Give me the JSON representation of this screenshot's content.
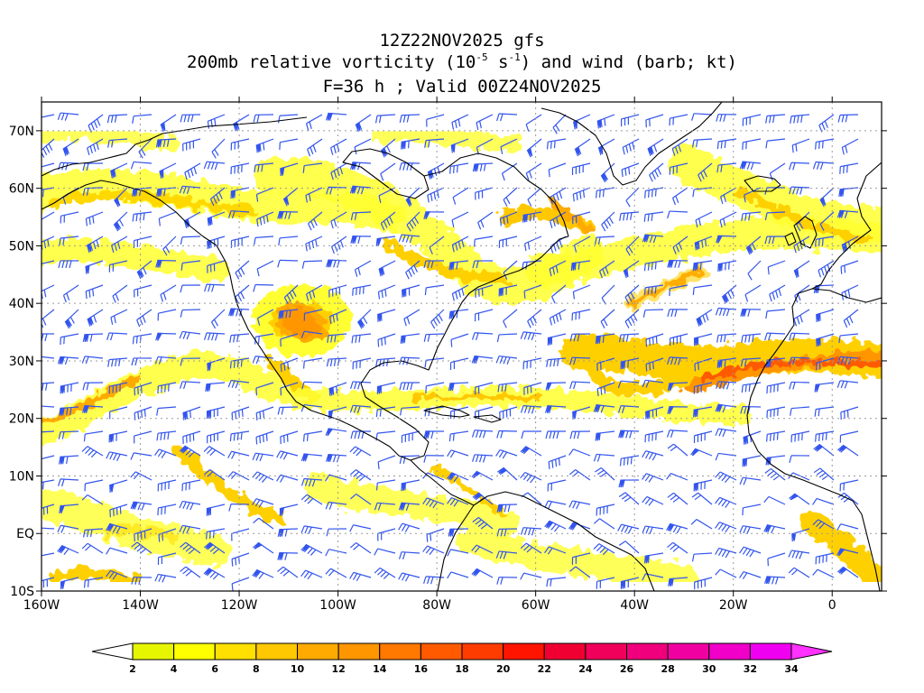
{
  "title": {
    "line1": "12Z22NOV2025 gfs",
    "line2_prefix": "200mb relative vorticity (10",
    "line2_exp1": "-5",
    "line2_mid": " s",
    "line2_exp2": "-1",
    "line2_suffix": ") and wind (barb; kt)",
    "line3": "F=36 h ; Valid 00Z24NOV2025"
  },
  "map": {
    "lon_range": [
      -160,
      10
    ],
    "lat_range": [
      -10,
      75
    ],
    "lon_ticks": [
      {
        "value": -160,
        "label": "160W"
      },
      {
        "value": -140,
        "label": "140W"
      },
      {
        "value": -120,
        "label": "120W"
      },
      {
        "value": -100,
        "label": "100W"
      },
      {
        "value": -80,
        "label": "80W"
      },
      {
        "value": -60,
        "label": "60W"
      },
      {
        "value": -40,
        "label": "40W"
      },
      {
        "value": -20,
        "label": "20W"
      },
      {
        "value": 0,
        "label": "0"
      }
    ],
    "lat_ticks": [
      {
        "value": -10,
        "label": "10S"
      },
      {
        "value": 0,
        "label": "EQ"
      },
      {
        "value": 10,
        "label": "10N"
      },
      {
        "value": 20,
        "label": "20N"
      },
      {
        "value": 30,
        "label": "30N"
      },
      {
        "value": 40,
        "label": "40N"
      },
      {
        "value": 50,
        "label": "50N"
      },
      {
        "value": 60,
        "label": "60N"
      },
      {
        "value": 70,
        "label": "70N"
      }
    ],
    "colors": {
      "barb": "#3355ee",
      "coast": "#000000",
      "grid": "#9a9a9a"
    }
  },
  "colorbar": {
    "levels": [
      "2",
      "4",
      "6",
      "8",
      "10",
      "12",
      "14",
      "16",
      "18",
      "20",
      "22",
      "24",
      "26",
      "28",
      "30",
      "32",
      "34"
    ],
    "colors": [
      "#e6f500",
      "#ffff00",
      "#ffe000",
      "#ffc800",
      "#ffaa00",
      "#ff9600",
      "#ff7800",
      "#ff5a00",
      "#ff3c00",
      "#ff1400",
      "#f00032",
      "#f0005a",
      "#f0007d",
      "#f000a0",
      "#f000c8",
      "#f000f0"
    ],
    "under_color": "#ffffff",
    "over_color": "#ff32ff"
  }
}
